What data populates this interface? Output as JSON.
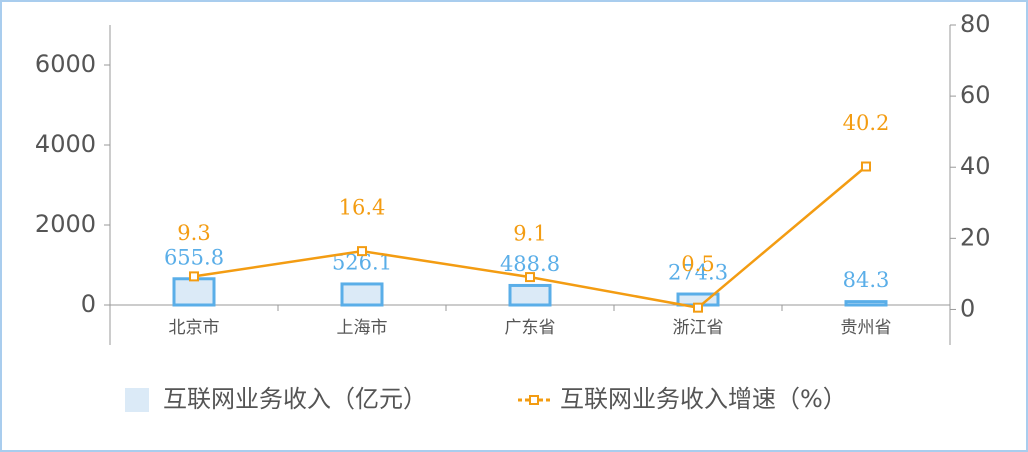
{
  "chart_data": {
    "type": "combo",
    "categories": [
      "北京市",
      "上海市",
      "广东省",
      "浙江省",
      "贵州省"
    ],
    "series": [
      {
        "name": "互联网业务收入（亿元）",
        "type": "bar",
        "color": "#5aaee8",
        "fill": "#dbeaf7",
        "values": [
          655.8,
          526.1,
          488.8,
          274.3,
          84.3
        ]
      },
      {
        "name": "互联网业务收入增速（%）",
        "type": "line",
        "axis": "y2",
        "color": "#f39c12",
        "values": [
          9.3,
          16.4,
          9.1,
          0.5,
          40.2
        ]
      }
    ],
    "ylim": [
      -1000,
      7000
    ],
    "yticks": [
      0,
      2000,
      4000,
      6000
    ],
    "y2lim": [
      -10,
      80
    ],
    "y2ticks": [
      0,
      20,
      40,
      60,
      80
    ]
  }
}
